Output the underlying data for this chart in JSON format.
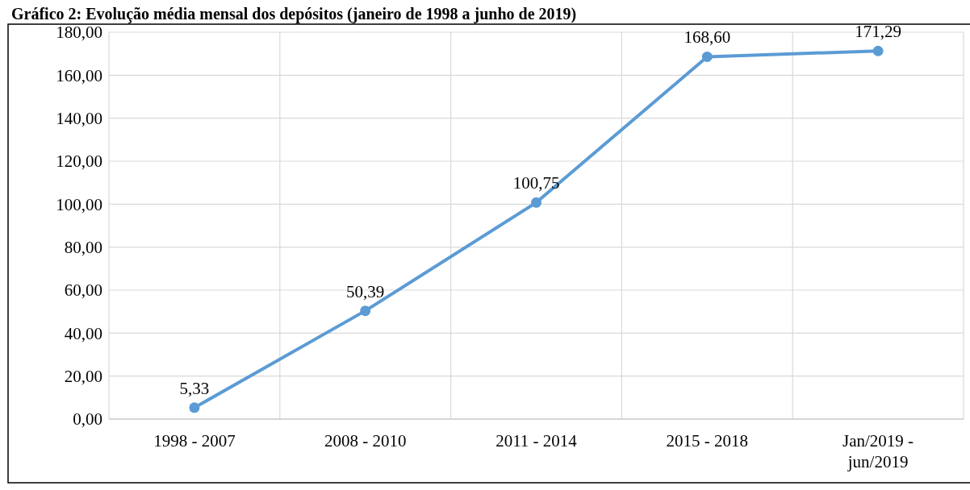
{
  "chart_data": {
    "type": "line",
    "title": "Gráfico 2: Evolução média mensal dos depósitos (janeiro de 1998 a junho de 2019)",
    "categories": [
      "1998 - 2007",
      "2008 - 2010",
      "2011 - 2014",
      "2015 - 2018",
      "Jan/2019 - jun/2019"
    ],
    "series": [
      {
        "color": "#5b9bd5",
        "values": [
          5.33,
          50.39,
          100.75,
          168.6,
          171.29
        ],
        "value_labels": [
          "5,33",
          "50,39",
          "100,75",
          "168,60",
          "171,29"
        ]
      }
    ],
    "ylim": [
      0,
      180
    ],
    "yticks": [
      {
        "value": 0,
        "label": "0,00"
      },
      {
        "value": 20,
        "label": "20,00"
      },
      {
        "value": 40,
        "label": "40,00"
      },
      {
        "value": 60,
        "label": "60,00"
      },
      {
        "value": 80,
        "label": "80,00"
      },
      {
        "value": 100,
        "label": "100,00"
      },
      {
        "value": 120,
        "label": "120,00"
      },
      {
        "value": 140,
        "label": "140,00"
      },
      {
        "value": 160,
        "label": "160,00"
      },
      {
        "value": 180,
        "label": "180,00"
      }
    ],
    "grid": true,
    "marker": "circle",
    "line_style": "solid"
  }
}
